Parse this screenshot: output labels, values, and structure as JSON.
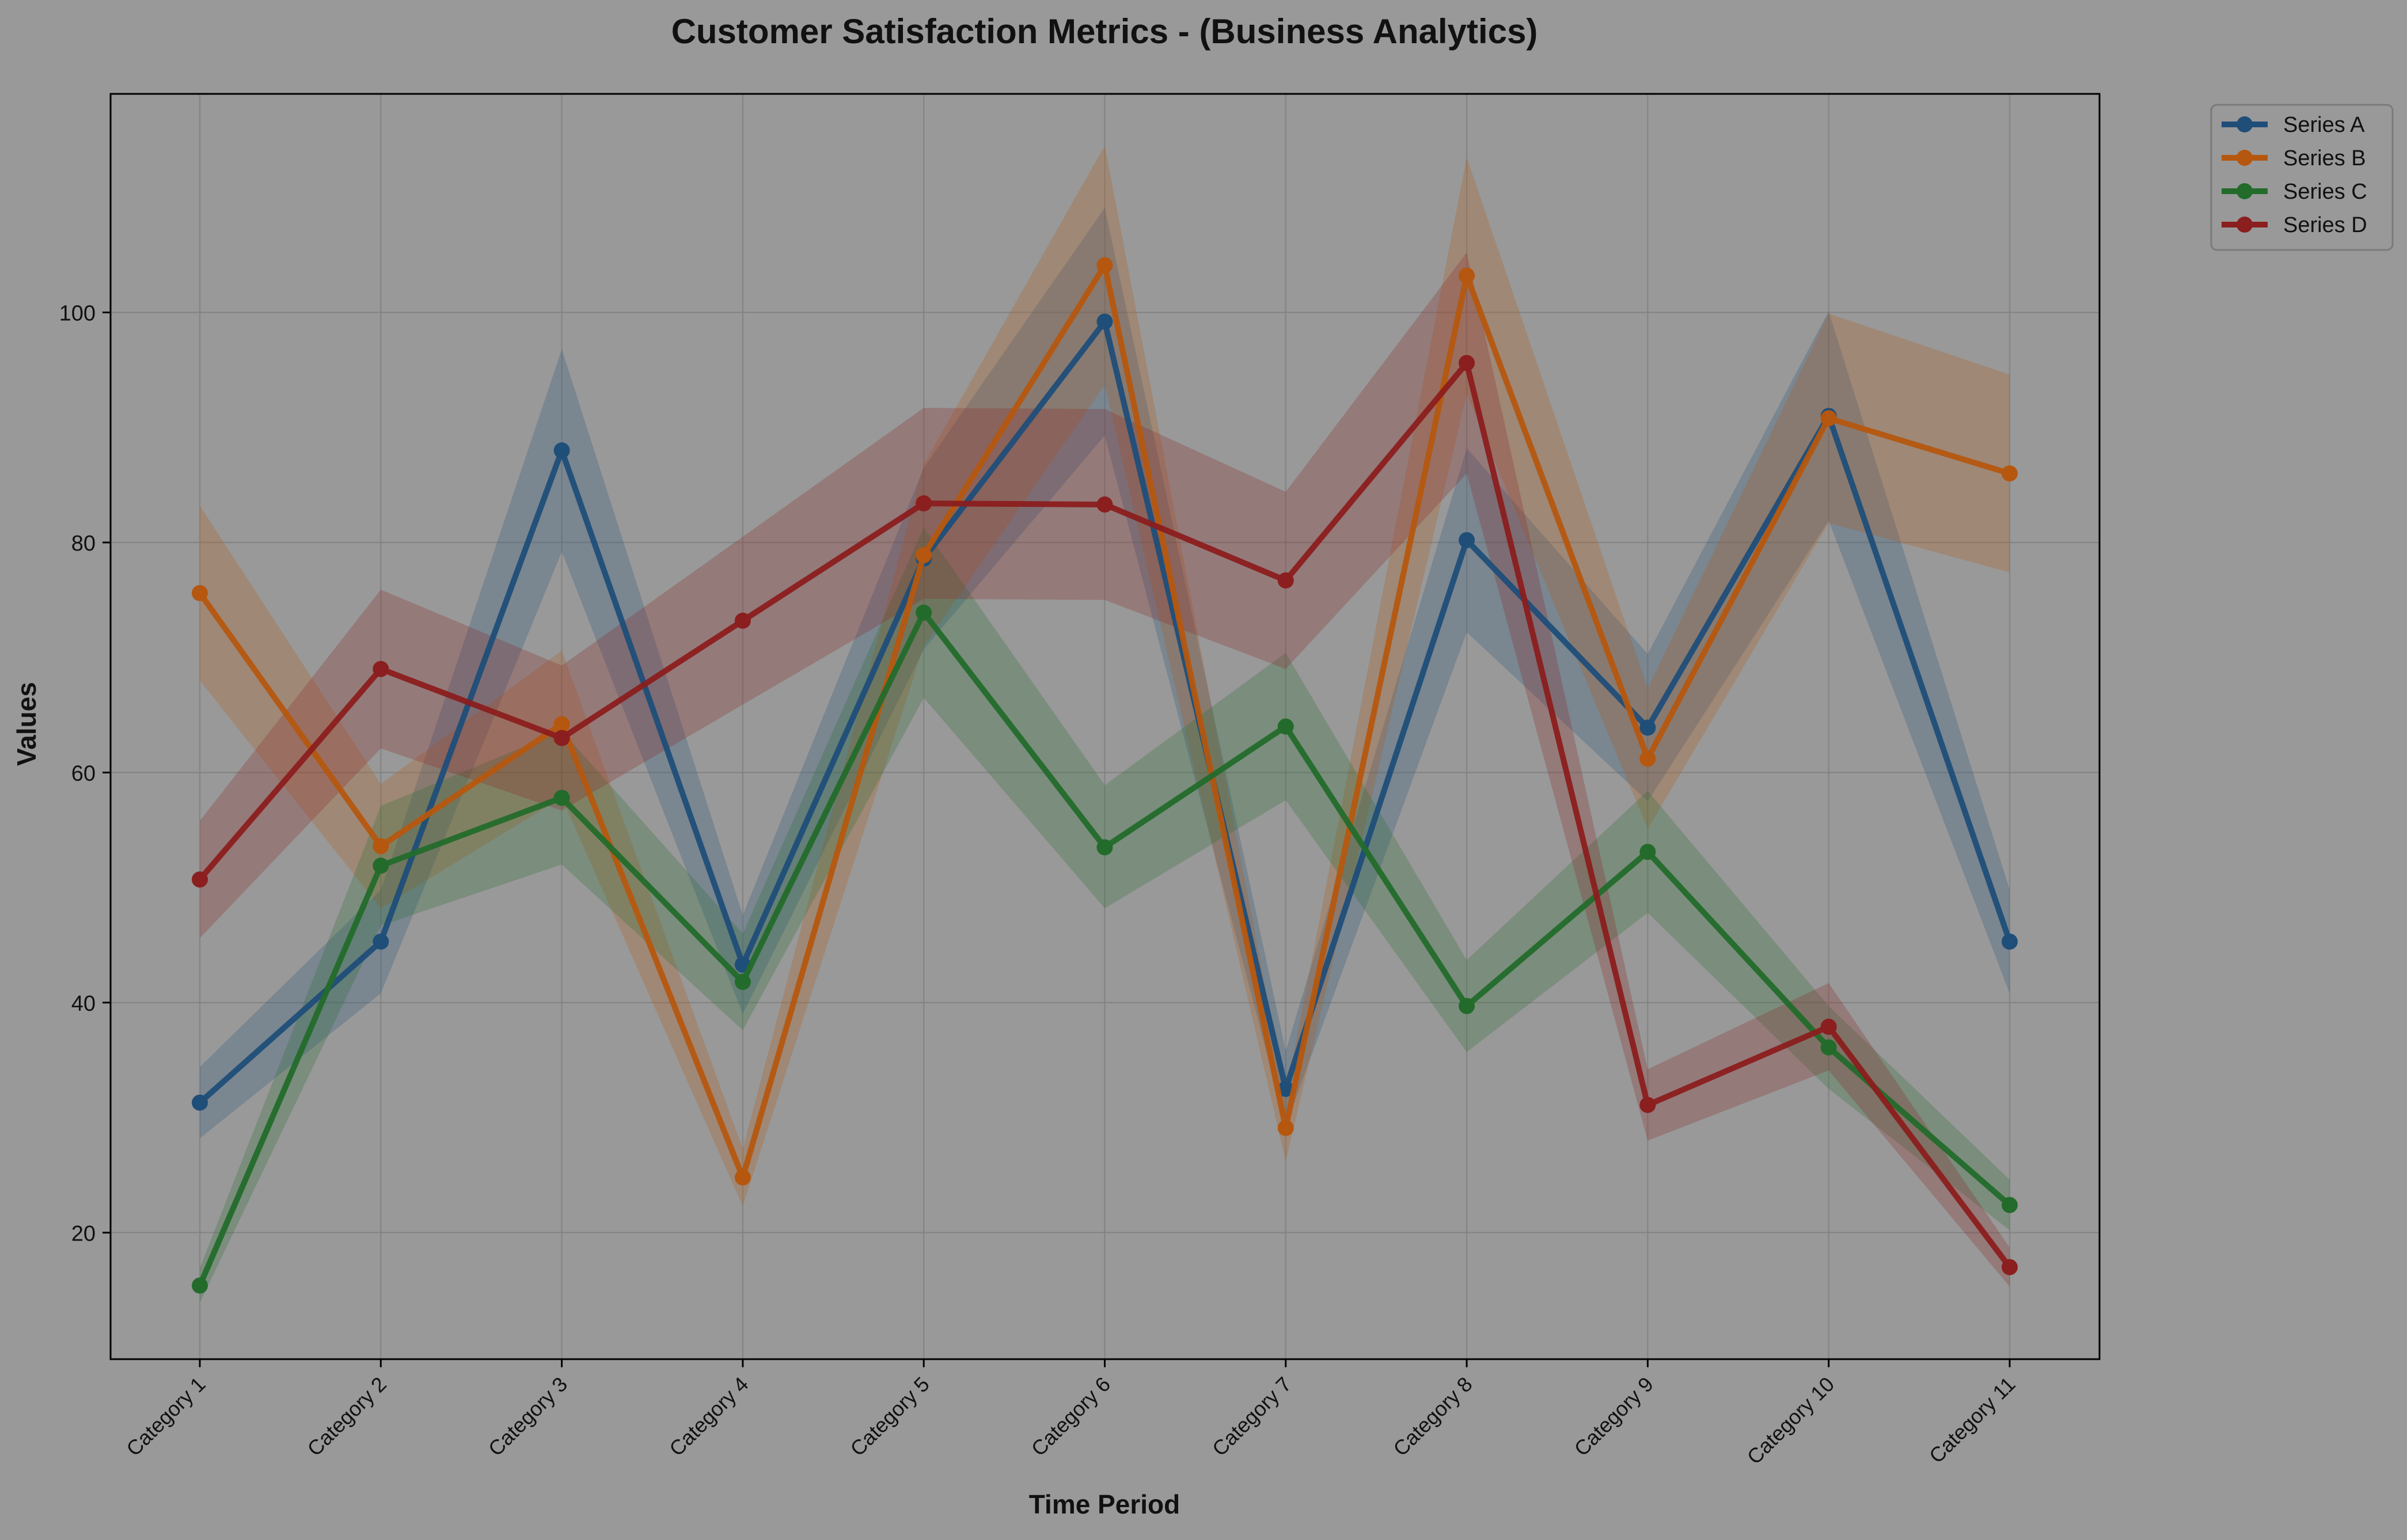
{
  "chart_data": {
    "type": "line",
    "title": "Customer Satisfaction Metrics - (Business Analytics)",
    "xlabel": "Time Period",
    "ylabel": "Values",
    "categories": [
      "Category 1",
      "Category 2",
      "Category 3",
      "Category 4",
      "Category 5",
      "Category 6",
      "Category 7",
      "Category 8",
      "Category 9",
      "Category 10",
      "Category 11"
    ],
    "ylim": [
      9,
      119
    ],
    "yticks": [
      20,
      40,
      60,
      80,
      100
    ],
    "grid": true,
    "legend_position": "outside-top-right",
    "series": [
      {
        "name": "Series A",
        "color": "#1f4e79",
        "values": [
          31.3,
          45.3,
          88.0,
          43.3,
          78.6,
          99.2,
          32.5,
          80.2,
          63.9,
          91.0,
          45.3
        ],
        "band": [
          [
            28.2,
            34.4
          ],
          [
            40.8,
            49.8
          ],
          [
            79.2,
            96.8
          ],
          [
            39.0,
            47.6
          ],
          [
            70.7,
            86.5
          ],
          [
            89.3,
            109.1
          ],
          [
            29.3,
            35.8
          ],
          [
            72.2,
            88.2
          ],
          [
            57.5,
            70.3
          ],
          [
            81.9,
            100.1
          ],
          [
            40.8,
            49.8
          ]
        ]
      },
      {
        "name": "Series B",
        "color": "#b5570f",
        "values": [
          75.6,
          53.6,
          64.2,
          24.8,
          78.9,
          104.1,
          29.1,
          103.2,
          61.2,
          90.8,
          86.0
        ],
        "band": [
          [
            68.0,
            83.2
          ],
          [
            48.2,
            59.0
          ],
          [
            57.8,
            70.6
          ],
          [
            22.3,
            27.3
          ],
          [
            71.0,
            86.8
          ],
          [
            93.7,
            114.5
          ],
          [
            26.2,
            32.0
          ],
          [
            92.9,
            113.5
          ],
          [
            55.1,
            67.3
          ],
          [
            81.7,
            99.9
          ],
          [
            77.4,
            94.6
          ]
        ]
      },
      {
        "name": "Series C",
        "color": "#236b2b",
        "values": [
          15.4,
          51.9,
          57.8,
          41.8,
          73.9,
          53.5,
          64.0,
          39.7,
          53.1,
          36.1,
          22.4
        ],
        "band": [
          [
            13.9,
            16.9
          ],
          [
            46.7,
            57.1
          ],
          [
            52.0,
            63.6
          ],
          [
            37.6,
            46.0
          ],
          [
            66.5,
            81.3
          ],
          [
            48.2,
            58.9
          ],
          [
            57.6,
            70.4
          ],
          [
            35.7,
            43.7
          ],
          [
            47.8,
            58.4
          ],
          [
            32.5,
            39.7
          ],
          [
            20.2,
            24.6
          ]
        ]
      },
      {
        "name": "Series D",
        "color": "#8b1e1e",
        "values": [
          50.7,
          69.0,
          63.0,
          73.2,
          83.4,
          83.3,
          76.7,
          95.6,
          31.1,
          37.9,
          17.0
        ],
        "band": [
          [
            45.6,
            55.8
          ],
          [
            62.1,
            75.9
          ],
          [
            56.7,
            69.3
          ],
          [
            65.9,
            80.5
          ],
          [
            75.1,
            91.7
          ],
          [
            75.0,
            91.6
          ],
          [
            69.0,
            84.4
          ],
          [
            86.0,
            105.2
          ],
          [
            28.0,
            34.2
          ],
          [
            34.1,
            41.7
          ],
          [
            15.3,
            18.7
          ]
        ]
      }
    ]
  }
}
